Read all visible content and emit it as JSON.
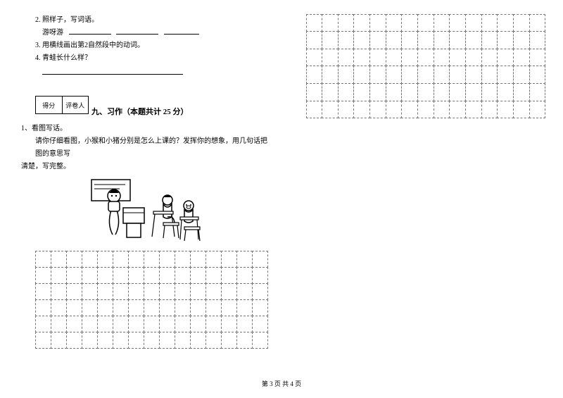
{
  "questions": {
    "q2": "2. 照样子，写词语。",
    "q2_example": "游呀游",
    "q3": "3. 用横线画出第2自然段中的动词。",
    "q4": "4. 青蛙长什么样？"
  },
  "scorebox": {
    "left": "得分",
    "right": "评卷人"
  },
  "section9": {
    "title": "九、习作（本题共计 25 分）",
    "q1_num": "1、看图写话。",
    "q1_body1": "请你仔细看图，小猴和小猪分别是怎么上课的？发挥你的想象，用几句话把图的意思写",
    "q1_body2": "清楚，写完整。"
  },
  "footer": "第 3 页  共 4 页",
  "grid": {
    "cols": 15,
    "rows": 6
  },
  "colors": {
    "text": "#000000",
    "bg": "#ffffff",
    "dash": "#777777"
  }
}
